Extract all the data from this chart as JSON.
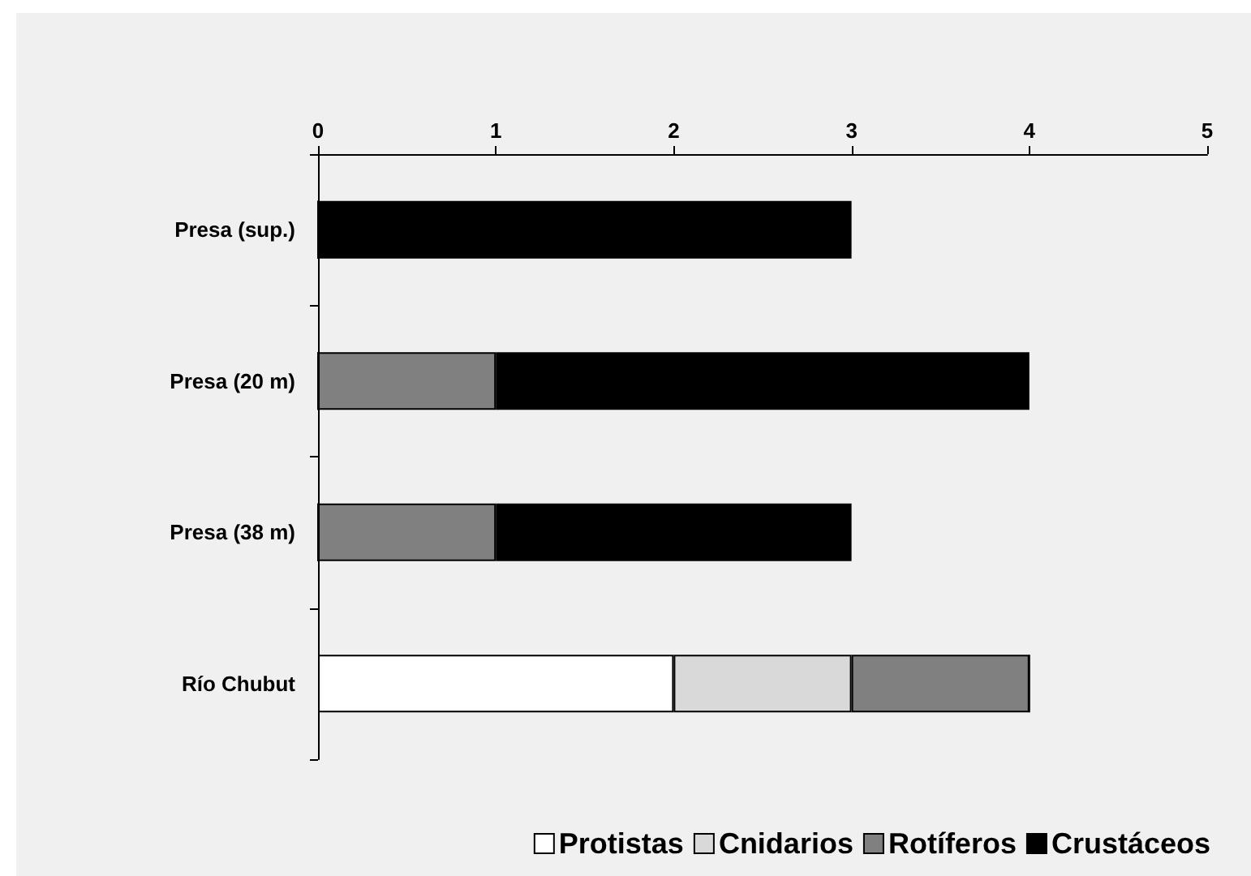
{
  "chart_data": {
    "type": "bar",
    "orientation": "horizontal",
    "stacked": true,
    "categories": [
      "Presa (sup.)",
      "Presa (20 m)",
      "Presa (38 m)",
      "Río Chubut"
    ],
    "series": [
      {
        "name": "Protistas",
        "color": "#ffffff",
        "values": [
          0,
          0,
          0,
          2
        ]
      },
      {
        "name": "Cnidarios",
        "color": "#d9d9d9",
        "values": [
          0,
          0,
          0,
          1
        ]
      },
      {
        "name": "Rotíferos",
        "color": "#808080",
        "values": [
          0,
          1,
          1,
          1
        ]
      },
      {
        "name": "Crustáceos",
        "color": "#000000",
        "values": [
          3,
          3,
          2,
          0
        ]
      }
    ],
    "xlim": [
      0,
      5
    ],
    "xticks": [
      0,
      1,
      2,
      3,
      4,
      5
    ],
    "grid": false,
    "legend": "bottom"
  }
}
